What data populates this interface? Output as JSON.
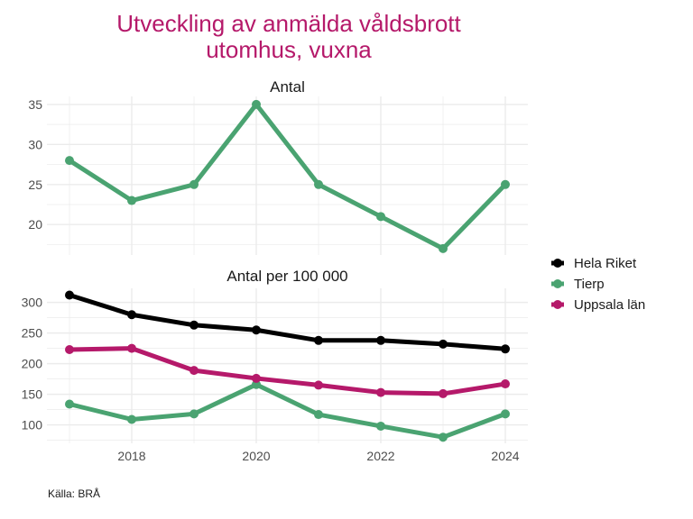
{
  "title": "Utveckling av anmälda våldsbrott utomhus, vuxna",
  "title_lines": [
    "Utveckling av anmälda våldsbrott",
    "utomhus, vuxna"
  ],
  "source": "Källa: BRÅ",
  "colors": {
    "Hela Riket": "#000000",
    "Tierp": "#4aa371",
    "Uppsala län": "#b5196a",
    "title": "#b5196a",
    "grid": "#ebebeb"
  },
  "chart_data": [
    {
      "type": "line",
      "title": "Antal",
      "xlabel": "",
      "ylabel": "",
      "x": [
        2017,
        2018,
        2019,
        2020,
        2021,
        2022,
        2023,
        2024
      ],
      "xticks": [
        "2018",
        "2020",
        "2022",
        "2024"
      ],
      "yticks": [
        "20",
        "25",
        "30",
        "35"
      ],
      "ylim": [
        16.2,
        36.0
      ],
      "grid": true,
      "series": [
        {
          "name": "Tierp",
          "values": [
            28,
            23,
            25,
            35,
            25,
            21,
            17,
            25
          ]
        }
      ]
    },
    {
      "type": "line",
      "title": "Antal per 100 000",
      "xlabel": "",
      "ylabel": "",
      "x": [
        2017,
        2018,
        2019,
        2020,
        2021,
        2022,
        2023,
        2024
      ],
      "xticks": [
        "2018",
        "2020",
        "2022",
        "2024"
      ],
      "yticks": [
        "100",
        "150",
        "200",
        "250",
        "300"
      ],
      "ylim": [
        70,
        323
      ],
      "grid": true,
      "legend": "right",
      "series": [
        {
          "name": "Hela Riket",
          "values": [
            312,
            280,
            263,
            255,
            238,
            238,
            232,
            224
          ]
        },
        {
          "name": "Tierp",
          "values": [
            134,
            109,
            118,
            166,
            117,
            98,
            80,
            118
          ]
        },
        {
          "name": "Uppsala län",
          "values": [
            223,
            225,
            189,
            176,
            165,
            153,
            151,
            167
          ]
        }
      ]
    }
  ]
}
